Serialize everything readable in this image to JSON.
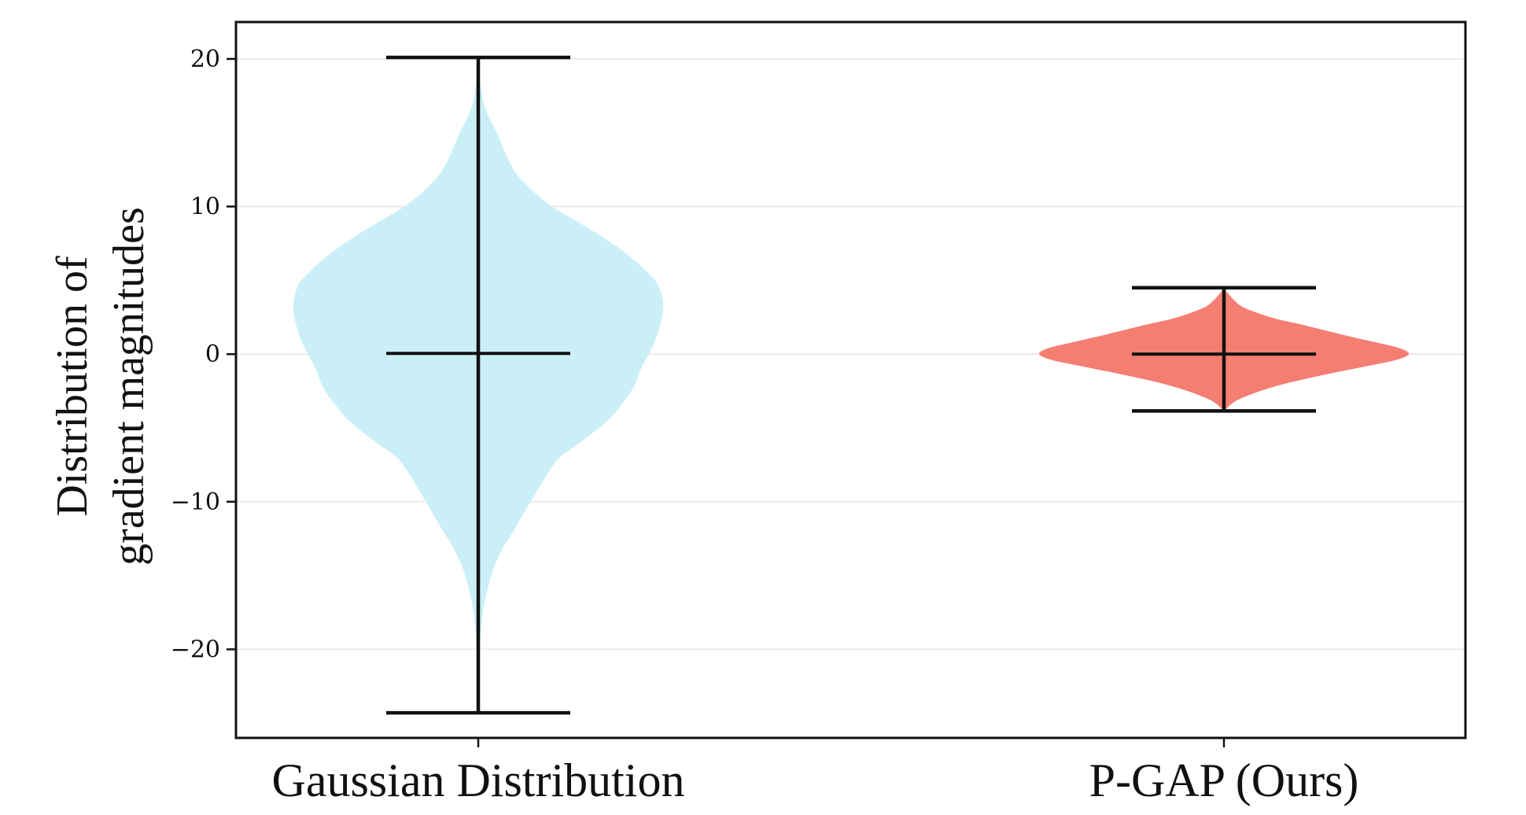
{
  "chart_data": {
    "type": "violin",
    "title": "",
    "xlabel": "",
    "ylabel_lines": [
      "Distribution of",
      "gradient magnitudes"
    ],
    "categories": [
      "Gaussian Distribution",
      "P-GAP (Ours)"
    ],
    "ylim": [
      -26,
      22.5
    ],
    "yticks": [
      20,
      10,
      0,
      -10,
      -20
    ],
    "ytick_labels": [
      "20",
      "10",
      "0",
      "−10",
      "−20"
    ],
    "grid": true,
    "series": [
      {
        "category": "Gaussian Distribution",
        "color": "#cbeff6",
        "min": -24.3,
        "max": 20.1,
        "median": 0.05,
        "density_profile": [
          [
            20.1,
            0.0
          ],
          [
            18.5,
            0.01
          ],
          [
            17.0,
            0.03
          ],
          [
            16.0,
            0.06
          ],
          [
            15.0,
            0.1
          ],
          [
            13.0,
            0.17
          ],
          [
            12.0,
            0.22
          ],
          [
            11.0,
            0.3
          ],
          [
            10.0,
            0.4
          ],
          [
            8.5,
            0.6
          ],
          [
            7.0,
            0.78
          ],
          [
            5.5,
            0.92
          ],
          [
            4.5,
            0.98
          ],
          [
            3.0,
            1.0
          ],
          [
            1.0,
            0.96
          ],
          [
            -1.0,
            0.88
          ],
          [
            -2.0,
            0.85
          ],
          [
            -3.0,
            0.8
          ],
          [
            -4.5,
            0.7
          ],
          [
            -6.0,
            0.55
          ],
          [
            -7.0,
            0.44
          ],
          [
            -8.0,
            0.38
          ],
          [
            -9.0,
            0.33
          ],
          [
            -10.5,
            0.26
          ],
          [
            -12.0,
            0.19
          ],
          [
            -13.0,
            0.14
          ],
          [
            -14.0,
            0.1
          ],
          [
            -15.0,
            0.07
          ],
          [
            -16.5,
            0.04
          ],
          [
            -18.0,
            0.02
          ],
          [
            -20.0,
            0.008
          ],
          [
            -21.5,
            0.0
          ]
        ]
      },
      {
        "category": "P-GAP (Ours)",
        "color": "#f57e73",
        "min": -3.85,
        "max": 4.5,
        "median": 0.0,
        "density_profile": [
          [
            4.5,
            0.0
          ],
          [
            4.3,
            0.01
          ],
          [
            4.0,
            0.03
          ],
          [
            3.6,
            0.06
          ],
          [
            3.2,
            0.1
          ],
          [
            2.8,
            0.18
          ],
          [
            2.4,
            0.28
          ],
          [
            2.0,
            0.42
          ],
          [
            1.6,
            0.55
          ],
          [
            1.2,
            0.68
          ],
          [
            0.8,
            0.82
          ],
          [
            0.4,
            0.95
          ],
          [
            0.0,
            1.0
          ],
          [
            -0.4,
            0.93
          ],
          [
            -0.8,
            0.78
          ],
          [
            -1.2,
            0.62
          ],
          [
            -1.6,
            0.47
          ],
          [
            -2.0,
            0.33
          ],
          [
            -2.4,
            0.22
          ],
          [
            -2.8,
            0.13
          ],
          [
            -3.2,
            0.06
          ],
          [
            -3.6,
            0.02
          ],
          [
            -3.85,
            0.0
          ]
        ]
      }
    ]
  }
}
